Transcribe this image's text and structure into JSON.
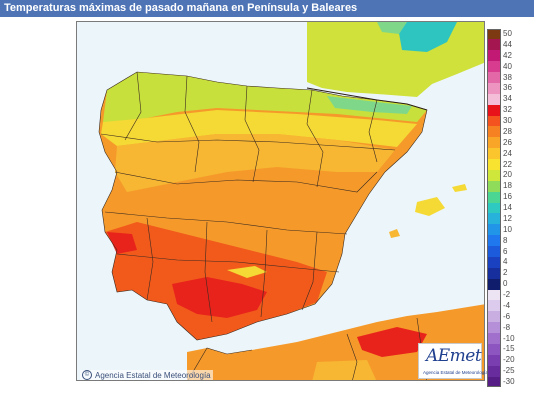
{
  "header": {
    "title": "Temperaturas máximas de pasado mañana en Península y Baleares"
  },
  "map": {
    "credit": "Agencia Estatal de Meteorología",
    "colors": {
      "sea": "#ecf6fa",
      "land_base": "#f59a2a",
      "land_hot": "#f25a1c",
      "land_veryhot": "#e8231b",
      "land_warm": "#f7b733",
      "land_mild": "#f5d935",
      "land_cool": "#c8e03c",
      "land_cold": "#7fd88a",
      "mountain_cold": "#2ec5c0",
      "border": "#3b2a20"
    }
  },
  "logo": {
    "word": "AEmet",
    "subtitle": "Agencia Estatal de Meteorología"
  },
  "legend": {
    "entries": [
      {
        "label": "50",
        "color": "#7d3a12"
      },
      {
        "label": "44",
        "color": "#a3164f"
      },
      {
        "label": "42",
        "color": "#c21a74"
      },
      {
        "label": "40",
        "color": "#d73c8e"
      },
      {
        "label": "38",
        "color": "#e368a7"
      },
      {
        "label": "36",
        "color": "#ee94c0"
      },
      {
        "label": "34",
        "color": "#f5bed8"
      },
      {
        "label": "32",
        "color": "#e8121b"
      },
      {
        "label": "30",
        "color": "#f4531f"
      },
      {
        "label": "28",
        "color": "#f68123"
      },
      {
        "label": "26",
        "color": "#f9a628"
      },
      {
        "label": "24",
        "color": "#fbc52e"
      },
      {
        "label": "22",
        "color": "#f8e331"
      },
      {
        "label": "20",
        "color": "#cfe63a"
      },
      {
        "label": "18",
        "color": "#8fdc5a"
      },
      {
        "label": "16",
        "color": "#4cd694"
      },
      {
        "label": "14",
        "color": "#2ec9c0"
      },
      {
        "label": "12",
        "color": "#26b2da"
      },
      {
        "label": "10",
        "color": "#2196e8"
      },
      {
        "label": "8",
        "color": "#1f78ee"
      },
      {
        "label": "6",
        "color": "#1c5bdc"
      },
      {
        "label": "4",
        "color": "#1a42c0"
      },
      {
        "label": "2",
        "color": "#172e9d"
      },
      {
        "label": "0",
        "color": "#101c6c"
      },
      {
        "label": "-2",
        "color": "#ece3f3"
      },
      {
        "label": "-4",
        "color": "#dccbec"
      },
      {
        "label": "-6",
        "color": "#c9aee2"
      },
      {
        "label": "-8",
        "color": "#b58fd8"
      },
      {
        "label": "-10",
        "color": "#a070cc"
      },
      {
        "label": "-15",
        "color": "#8c55bf"
      },
      {
        "label": "-20",
        "color": "#7a3eb0"
      },
      {
        "label": "-25",
        "color": "#682c9c"
      },
      {
        "label": "-30",
        "color": "#561d86"
      }
    ]
  }
}
